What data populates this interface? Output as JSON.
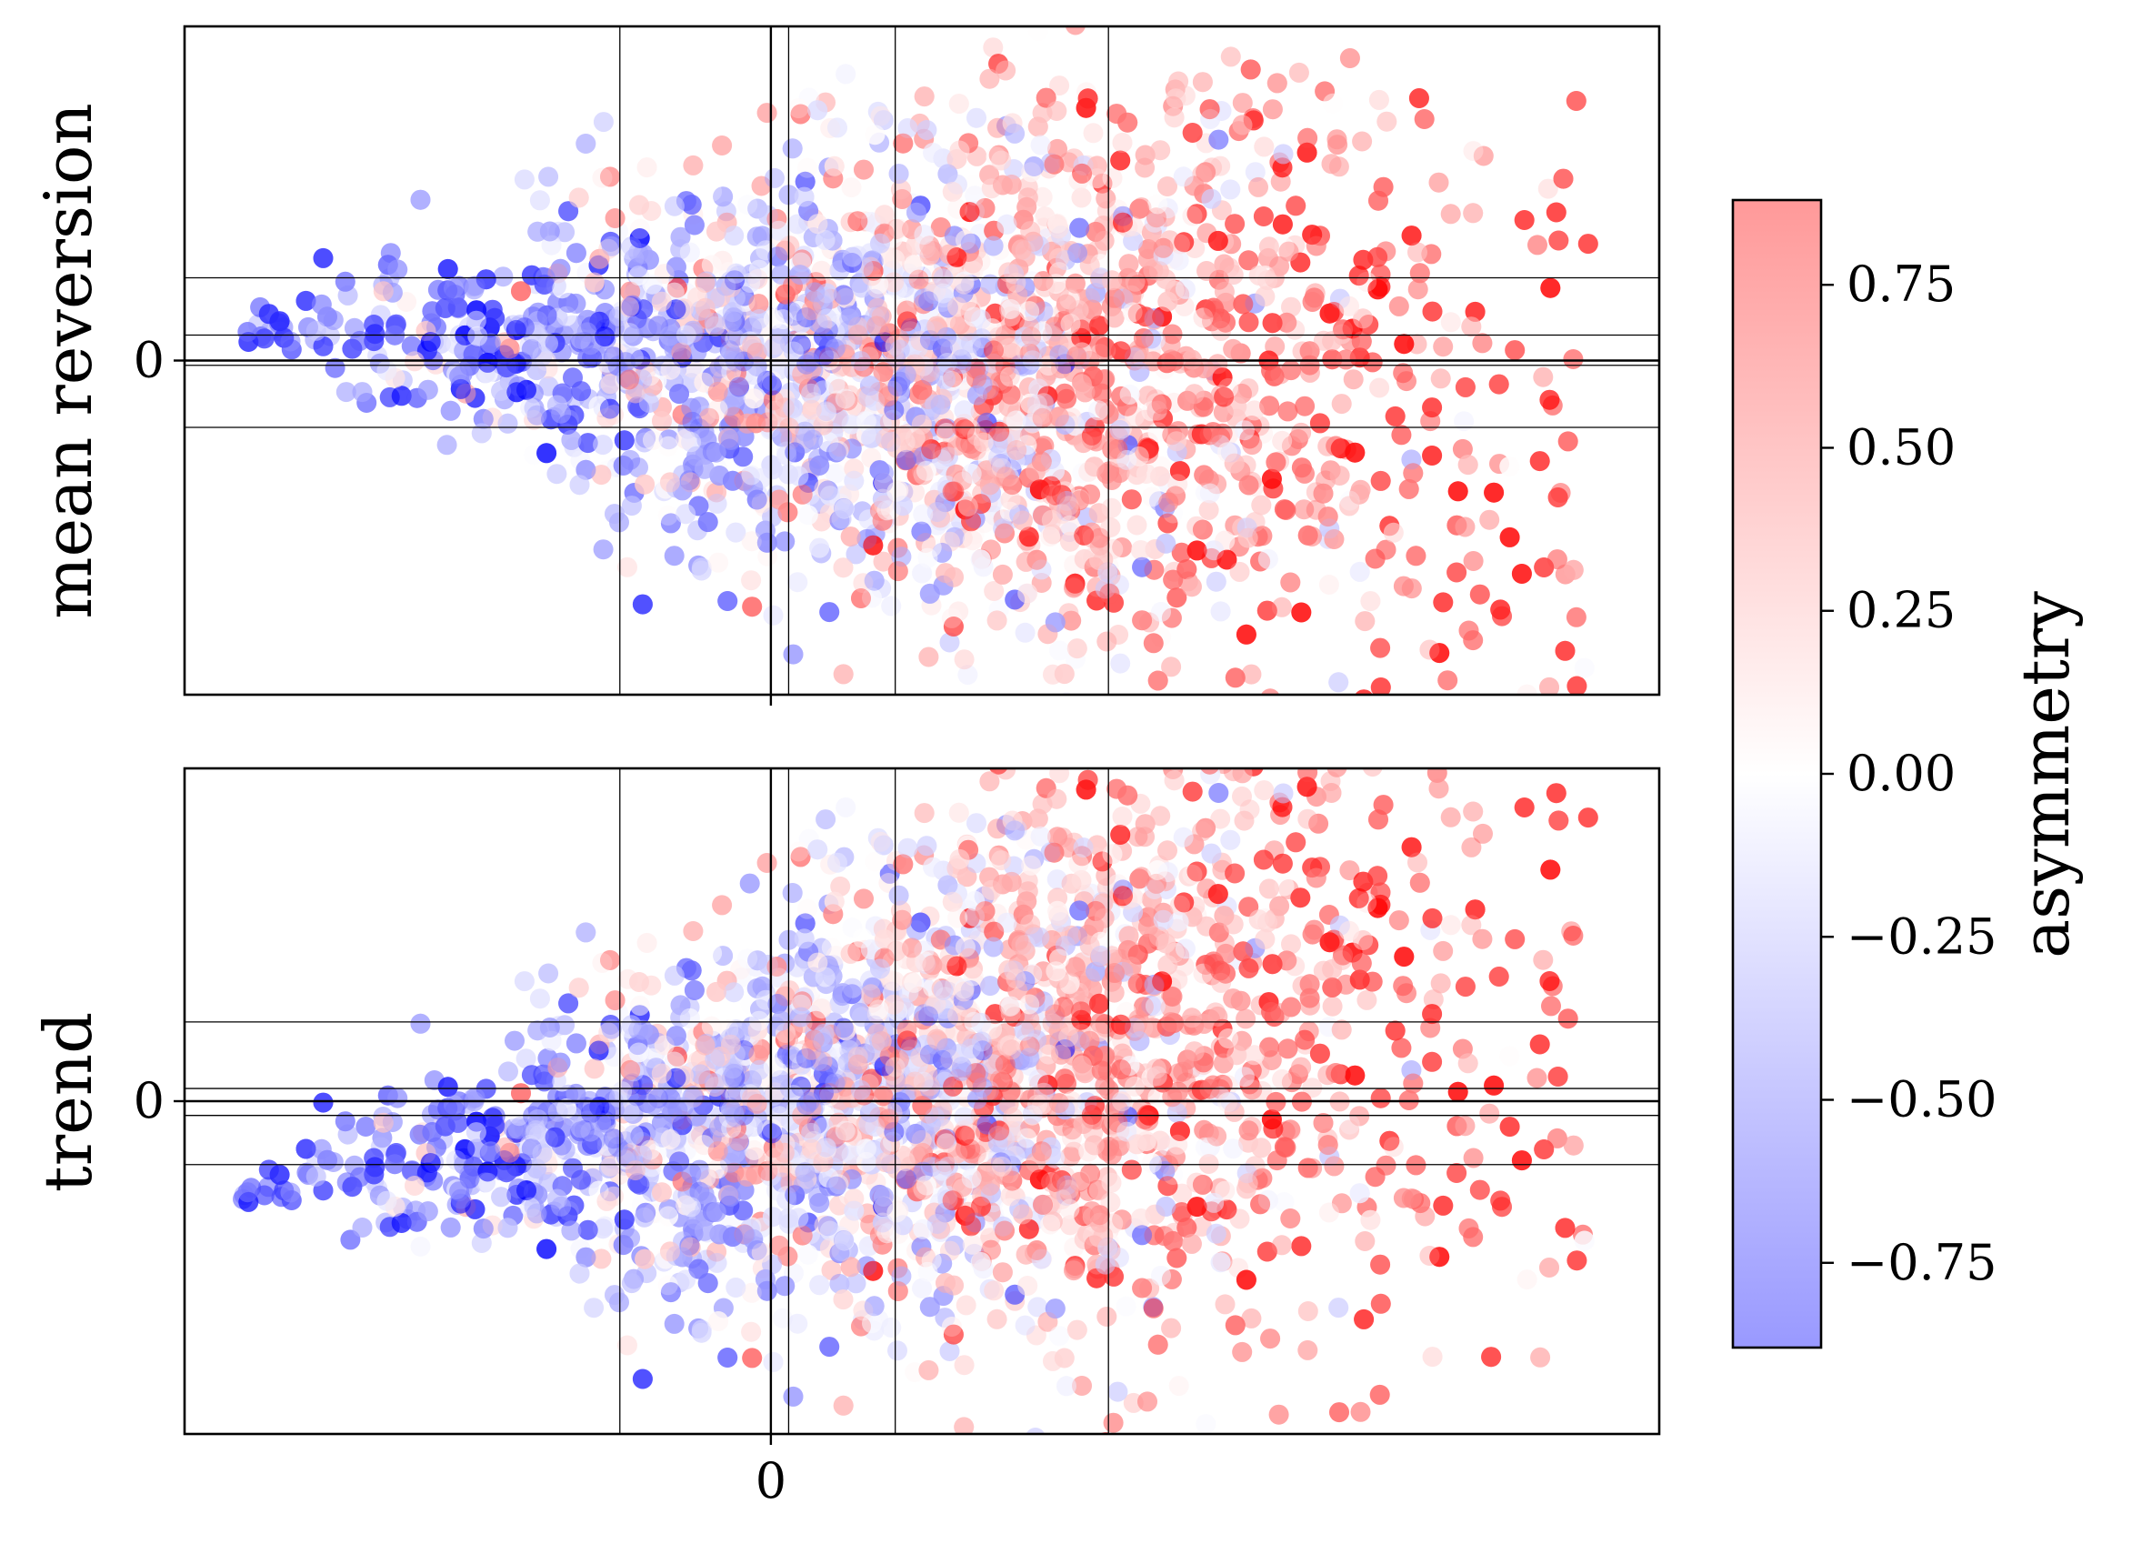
{
  "chart_data": [
    {
      "type": "scatter",
      "panel": "top",
      "title": "",
      "xlabel": "",
      "ylabel": "mean reversion",
      "x_ticks": [
        0
      ],
      "x_tick_labels": [
        ""
      ],
      "y_ticks": [
        0
      ],
      "y_tick_labels": [
        "0"
      ],
      "xlim": [
        -3.3,
        5.0
      ],
      "ylim": [
        -2.1,
        2.1
      ],
      "vlines": [
        -0.85,
        0.0,
        0.1,
        0.7,
        1.9
      ],
      "hlines": [
        0.52,
        0.16,
        0.0,
        -0.03,
        -0.42
      ],
      "grid": false,
      "points": {
        "count": 5000,
        "x_range": [
          -3.0,
          4.6
        ],
        "y_spread_grows_with_x": true,
        "color_by": "asymmetry",
        "asymmetry_mean_at_left": -0.6,
        "asymmetry_mean_at_right": 0.7,
        "marker_opacity": 0.45
      }
    },
    {
      "type": "scatter",
      "panel": "bottom",
      "title": "",
      "xlabel": "",
      "ylabel": "trend",
      "x_ticks": [
        0
      ],
      "x_tick_labels": [
        "0"
      ],
      "y_ticks": [
        0
      ],
      "y_tick_labels": [
        "0"
      ],
      "xlim": [
        -3.3,
        5.0
      ],
      "ylim": [
        -2.1,
        2.1
      ],
      "vlines": [
        -0.85,
        0.0,
        0.1,
        0.7,
        1.9
      ],
      "hlines": [
        0.5,
        0.08,
        0.0,
        -0.09,
        -0.4
      ],
      "grid": false,
      "points": {
        "count": 5000,
        "x_range": [
          -3.0,
          4.6
        ],
        "y_spread_grows_with_x": true,
        "y_trend_up_with_x": true,
        "color_by": "asymmetry",
        "asymmetry_mean_at_left": -0.6,
        "asymmetry_mean_at_right": 0.7,
        "marker_opacity": 0.45
      }
    }
  ],
  "colorbar": {
    "label": "asymmetry",
    "vmin": -0.88,
    "vmax": 0.88,
    "ticks": [
      0.75,
      0.5,
      0.25,
      0.0,
      -0.25,
      -0.5,
      -0.75
    ],
    "tick_labels": [
      "0.75",
      "0.50",
      "0.25",
      "0.00",
      "−0.25",
      "−0.50",
      "−0.75"
    ],
    "colormap": "bwr",
    "colors": {
      "low": "#0000ff",
      "mid": "#ffffff",
      "high": "#ff0000",
      "alpha": 0.4
    }
  }
}
